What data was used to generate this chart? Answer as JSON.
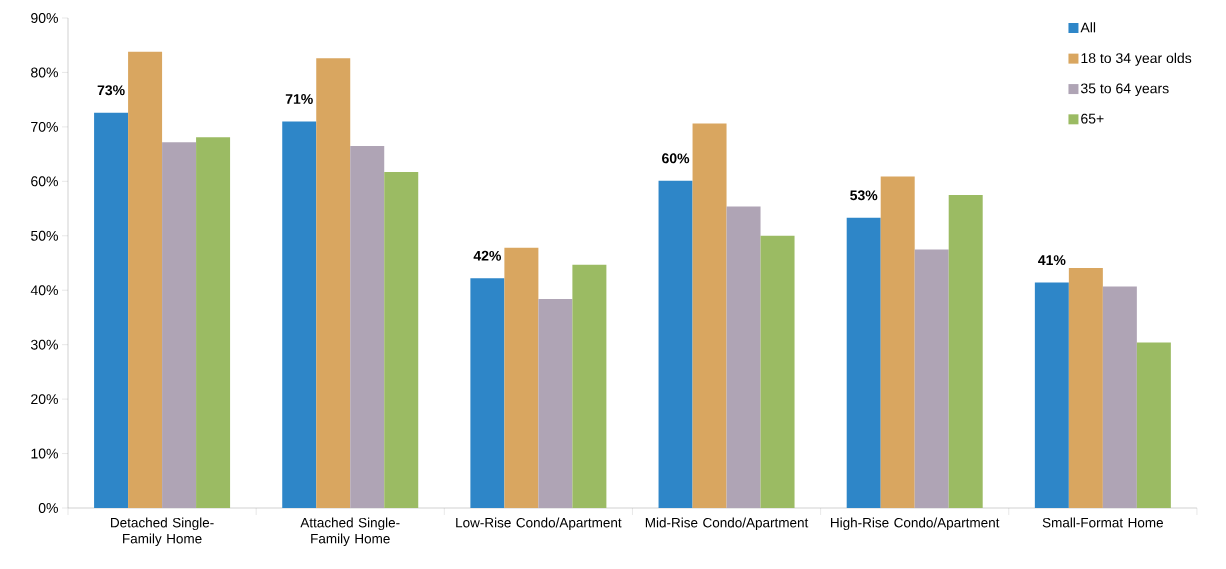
{
  "chart_data": {
    "type": "bar",
    "categories": [
      "Detached Single-Family Home",
      "Attached Single-Family Home",
      "Low-Rise Condo/Apartment",
      "Mid-Rise Condo/Apartment",
      "High-Rise Condo/Apartment",
      "Small-Format Home"
    ],
    "series": [
      {
        "name": "All",
        "color": "#2e86c8",
        "values": [
          72.6,
          71.0,
          42.2,
          60.1,
          53.3,
          41.4
        ],
        "value_labels": [
          "73%",
          "71%",
          "42%",
          "60%",
          "53%",
          "41%"
        ]
      },
      {
        "name": "18 to 34 year olds",
        "color": "#d9a660",
        "values": [
          83.8,
          82.6,
          47.8,
          70.6,
          60.9,
          44.1
        ]
      },
      {
        "name": "35 to 64 years",
        "color": "#afa4b5",
        "values": [
          67.2,
          66.5,
          38.4,
          55.4,
          47.5,
          40.7
        ]
      },
      {
        "name": "65+",
        "color": "#9bbb63",
        "values": [
          68.1,
          61.7,
          44.7,
          50.0,
          57.5,
          30.4
        ]
      }
    ],
    "ylim": [
      0,
      90
    ],
    "yticks": [
      {
        "value": 0,
        "label": "0%"
      },
      {
        "value": 10,
        "label": "10%"
      },
      {
        "value": 20,
        "label": "20%"
      },
      {
        "value": 30,
        "label": "30%"
      },
      {
        "value": 40,
        "label": "40%"
      },
      {
        "value": 50,
        "label": "50%"
      },
      {
        "value": 60,
        "label": "60%"
      },
      {
        "value": 70,
        "label": "70%"
      },
      {
        "value": 80,
        "label": "80%"
      },
      {
        "value": 90,
        "label": "90%"
      }
    ],
    "legend": "top right",
    "grid": false
  }
}
